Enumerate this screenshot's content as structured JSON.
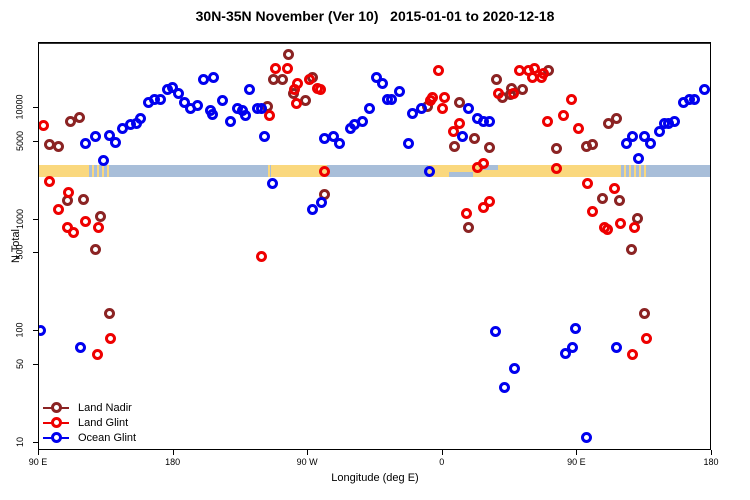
{
  "title": "30N-35N November (Ver 10)   2015-01-01 to 2020-12-18",
  "legend": {
    "items": [
      {
        "label": "Land Nadir",
        "color": "#8B2323"
      },
      {
        "label": "Land Glint",
        "color": "#EE0000"
      },
      {
        "label": "Ocean Glint",
        "color": "#0000EE"
      }
    ]
  },
  "band": {
    "ocean_color": "#A8BED9",
    "land_color": "#FAD87E",
    "n_range": [
      2400,
      3100
    ],
    "segments": [
      {
        "from": 90,
        "to": 122,
        "type": "land"
      },
      {
        "from": 122,
        "to": 138,
        "type": "mixed"
      },
      {
        "from": 138,
        "to": 243,
        "type": "ocean"
      },
      {
        "from": 243,
        "to": 245,
        "type": "mixed"
      },
      {
        "from": 245,
        "to": 281,
        "type": "land"
      },
      {
        "from": 281,
        "to": 284,
        "type": "mixed"
      },
      {
        "from": 284,
        "to": 350,
        "type": "ocean"
      },
      {
        "from": 350,
        "to": 478,
        "type": "land"
      },
      {
        "from": 478,
        "to": 497,
        "type": "mixed"
      },
      {
        "from": 497,
        "to": 540,
        "type": "ocean"
      }
    ],
    "ocean_notches": [
      {
        "from": 364,
        "to": 380,
        "pos": "bottom"
      },
      {
        "from": 386,
        "to": 397,
        "pos": "top"
      }
    ]
  },
  "chart_data": {
    "type": "scatter",
    "title": "30N-35N November (Ver 10)   2015-01-01 to 2020-12-18",
    "xlabel": "Longitude (deg E)",
    "ylabel": "N Total",
    "x_axis": {
      "range": [
        90,
        540
      ],
      "ticks": [
        {
          "value": 90,
          "label": "90 E"
        },
        {
          "value": 180,
          "label": "180"
        },
        {
          "value": 270,
          "label": "90 W"
        },
        {
          "value": 360,
          "label": "0"
        },
        {
          "value": 450,
          "label": "90 E"
        },
        {
          "value": 540,
          "label": "180"
        }
      ]
    },
    "y_axis": {
      "scale": "log",
      "range": [
        8.2,
        37500
      ],
      "ticks": [
        {
          "value": 10000,
          "label": "10000"
        },
        {
          "value": 5000,
          "label": "5000"
        },
        {
          "value": 1000,
          "label": "1000"
        },
        {
          "value": 500,
          "label": "500"
        },
        {
          "value": 100,
          "label": "100"
        },
        {
          "value": 50,
          "label": "50"
        },
        {
          "value": 10,
          "label": "10"
        }
      ]
    },
    "reference_line_y": 50,
    "legend_position": "bottom-left",
    "series": [
      {
        "name": "Land Nadir",
        "color": "#8B2323",
        "points": [
          [
            111,
            7600
          ],
          [
            117,
            8300
          ],
          [
            97,
            4750
          ],
          [
            103,
            4560
          ],
          [
            109,
            1470
          ],
          [
            120,
            1500
          ],
          [
            131,
            1070
          ],
          [
            128,
            540
          ],
          [
            137,
            145
          ],
          [
            257,
            30500
          ],
          [
            247,
            18200
          ],
          [
            253,
            18200
          ],
          [
            273,
            18600
          ],
          [
            260,
            13400
          ],
          [
            268,
            11600
          ],
          [
            243,
            10400
          ],
          [
            281,
            1660
          ],
          [
            350,
            10400
          ],
          [
            371,
            11100
          ],
          [
            368,
            4560
          ],
          [
            381,
            5300
          ],
          [
            391,
            4400
          ],
          [
            396,
            18200
          ],
          [
            406,
            15100
          ],
          [
            413,
            14800
          ],
          [
            400,
            12300
          ],
          [
            405,
            13100
          ],
          [
            431,
            21500
          ],
          [
            436,
            4300
          ],
          [
            377,
            840
          ],
          [
            471,
            7300
          ],
          [
            476,
            8100
          ],
          [
            456,
            4560
          ],
          [
            460,
            4660
          ],
          [
            467,
            1530
          ],
          [
            478,
            1470
          ],
          [
            490,
            1030
          ],
          [
            486,
            540
          ],
          [
            495,
            145
          ]
        ]
      },
      {
        "name": "Land Glint",
        "color": "#EE0000",
        "points": [
          [
            93,
            6900
          ],
          [
            97,
            2170
          ],
          [
            110,
            1730
          ],
          [
            103,
            1220
          ],
          [
            109,
            840
          ],
          [
            113,
            760
          ],
          [
            121,
            950
          ],
          [
            130,
            840
          ],
          [
            138,
            85
          ],
          [
            129,
            62
          ],
          [
            244,
            8500
          ],
          [
            248,
            22400
          ],
          [
            256,
            22400
          ],
          [
            263,
            16700
          ],
          [
            271,
            18200
          ],
          [
            261,
            14800
          ],
          [
            276,
            15100
          ],
          [
            278,
            14800
          ],
          [
            262,
            10900
          ],
          [
            281,
            2720
          ],
          [
            239,
            470
          ],
          [
            357,
            21900
          ],
          [
            353,
            12300
          ],
          [
            352,
            11600
          ],
          [
            361,
            12300
          ],
          [
            360,
            10000
          ],
          [
            371,
            7300
          ],
          [
            367,
            6200
          ],
          [
            387,
            3200
          ],
          [
            383,
            2900
          ],
          [
            430,
            7600
          ],
          [
            411,
            21500
          ],
          [
            417,
            21900
          ],
          [
            421,
            22400
          ],
          [
            427,
            20600
          ],
          [
            420,
            18600
          ],
          [
            426,
            18600
          ],
          [
            397,
            13600
          ],
          [
            407,
            13400
          ],
          [
            376,
            1140
          ],
          [
            387,
            1270
          ],
          [
            391,
            1440
          ],
          [
            436,
            2840
          ],
          [
            446,
            12000
          ],
          [
            441,
            8500
          ],
          [
            451,
            6600
          ],
          [
            457,
            2120
          ],
          [
            475,
            1880
          ],
          [
            460,
            1190
          ],
          [
            479,
            930
          ],
          [
            468,
            840
          ],
          [
            470,
            820
          ],
          [
            488,
            840
          ],
          [
            487,
            62
          ],
          [
            496,
            85
          ]
        ]
      },
      {
        "name": "Ocean Glint",
        "color": "#0000EE",
        "points": [
          [
            121,
            4850
          ],
          [
            128,
            5500
          ],
          [
            137,
            5700
          ],
          [
            141,
            4950
          ],
          [
            133,
            3350
          ],
          [
            146,
            6500
          ],
          [
            151,
            7050
          ],
          [
            155,
            7300
          ],
          [
            158,
            8000
          ],
          [
            163,
            11100
          ],
          [
            167,
            12000
          ],
          [
            171,
            11800
          ],
          [
            176,
            14800
          ],
          [
            179,
            15400
          ],
          [
            183,
            13600
          ],
          [
            187,
            11100
          ],
          [
            191,
            10000
          ],
          [
            196,
            10600
          ],
          [
            200,
            18200
          ],
          [
            206,
            8800
          ],
          [
            91,
            102
          ],
          [
            118,
            71
          ],
          [
            207,
            18600
          ],
          [
            205,
            9400
          ],
          [
            213,
            11600
          ],
          [
            218,
            7600
          ],
          [
            223,
            10000
          ],
          [
            226,
            9400
          ],
          [
            228,
            8500
          ],
          [
            231,
            14800
          ],
          [
            236,
            10000
          ],
          [
            239,
            9800
          ],
          [
            241,
            5600
          ],
          [
            281,
            5300
          ],
          [
            287,
            5500
          ],
          [
            291,
            4850
          ],
          [
            298,
            6600
          ],
          [
            301,
            7050
          ],
          [
            306,
            7600
          ],
          [
            311,
            9800
          ],
          [
            316,
            18600
          ],
          [
            320,
            16700
          ],
          [
            323,
            12000
          ],
          [
            246,
            2090
          ],
          [
            279,
            1410
          ],
          [
            273,
            1220
          ],
          [
            331,
            14200
          ],
          [
            326,
            12000
          ],
          [
            340,
            9000
          ],
          [
            346,
            10000
          ],
          [
            377,
            10000
          ],
          [
            383,
            8000
          ],
          [
            387,
            7500
          ],
          [
            391,
            7600
          ],
          [
            373,
            5600
          ],
          [
            337,
            4850
          ],
          [
            351,
            2670
          ],
          [
            395,
            98
          ],
          [
            408,
            46
          ],
          [
            401,
            31
          ],
          [
            483,
            4850
          ],
          [
            487,
            5500
          ],
          [
            495,
            5500
          ],
          [
            499,
            4850
          ],
          [
            491,
            3500
          ],
          [
            505,
            6200
          ],
          [
            508,
            7200
          ],
          [
            511,
            7300
          ],
          [
            515,
            7600
          ],
          [
            521,
            11100
          ],
          [
            525,
            12000
          ],
          [
            528,
            12000
          ],
          [
            535,
            14800
          ],
          [
            449,
            105
          ],
          [
            442,
            63
          ],
          [
            447,
            71
          ],
          [
            476,
            71
          ],
          [
            456,
            11
          ]
        ]
      }
    ]
  }
}
